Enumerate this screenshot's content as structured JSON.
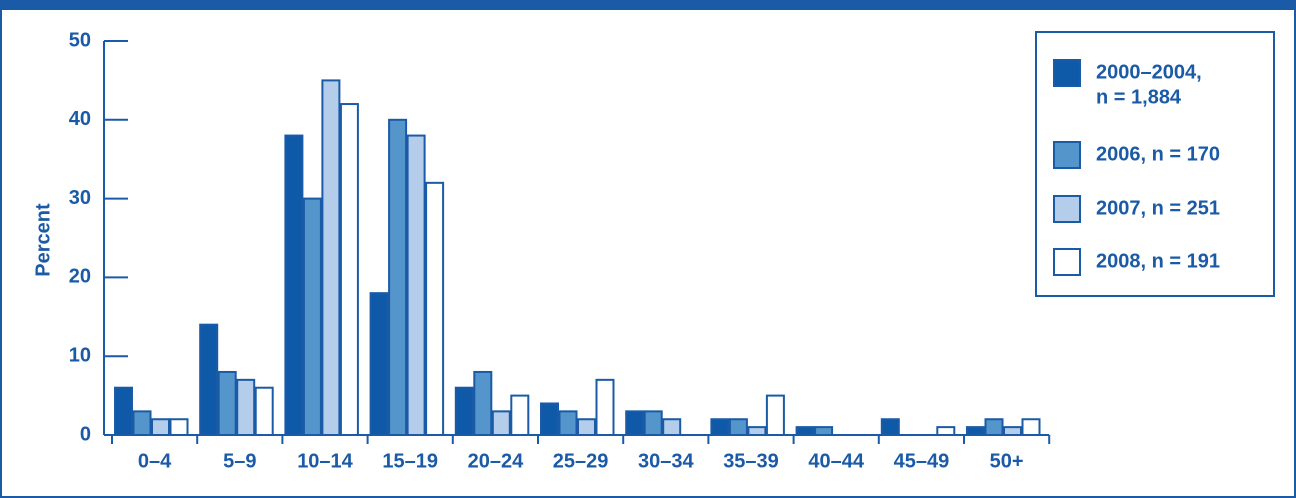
{
  "chart_data": {
    "type": "bar",
    "categories": [
      "0–4",
      "5–9",
      "10–14",
      "15–19",
      "20–24",
      "25–29",
      "30–34",
      "35–39",
      "40–44",
      "45–49",
      "50+"
    ],
    "series": [
      {
        "name": "2000–2004, n = 1,884",
        "name_lines": [
          "2000–2004,",
          "n = 1,884"
        ],
        "color": "#0f5aa8",
        "values": [
          6,
          14,
          38,
          18,
          6,
          4,
          3,
          2,
          1,
          2,
          1
        ]
      },
      {
        "name": "2006, n = 170",
        "name_lines": [
          "2006, n = 170"
        ],
        "color": "#5495cc",
        "values": [
          3,
          8,
          30,
          40,
          8,
          3,
          3,
          2,
          1,
          0,
          2
        ]
      },
      {
        "name": "2007, n = 251",
        "name_lines": [
          "2007, n = 251"
        ],
        "color": "#b3cdea",
        "values": [
          2,
          7,
          45,
          38,
          3,
          2,
          2,
          1,
          0,
          0,
          1
        ]
      },
      {
        "name": "2008, n = 191",
        "name_lines": [
          "2008, n = 191"
        ],
        "color": "#ffffff",
        "values": [
          2,
          6,
          42,
          32,
          5,
          7,
          0,
          5,
          0,
          1,
          2
        ]
      }
    ],
    "ylabel": "Percent",
    "xlabel": "",
    "ylim": [
      0,
      50
    ],
    "yticks": [
      0,
      10,
      20,
      30,
      40,
      50
    ],
    "legend_position": "top-right",
    "grid": false,
    "accent_color": "#1a5aa6"
  }
}
